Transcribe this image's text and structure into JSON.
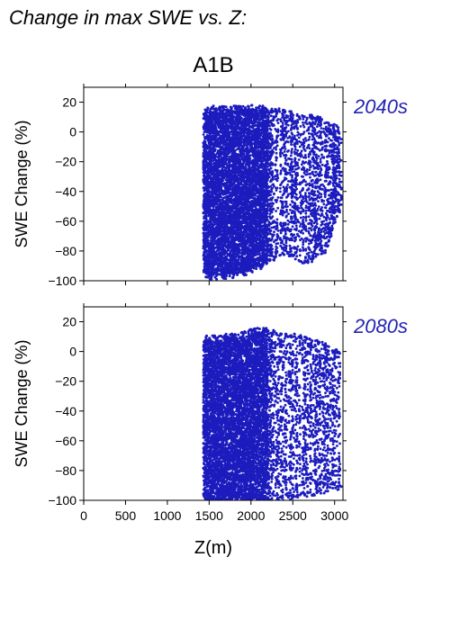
{
  "header": {
    "title": "Change in max SWE vs. Z:"
  },
  "chart_data": {
    "type": "scatter",
    "scenario": "A1B",
    "point_color": "#1c1cbe",
    "label_color": "#2323b4",
    "xlabel": "Z(m)",
    "xlim": [
      0,
      3100
    ],
    "xticks": [
      0,
      500,
      1000,
      1500,
      2000,
      2500,
      3000
    ],
    "xtick_labels": [
      "0",
      "500",
      "1000",
      "1500",
      "2000",
      "2500",
      "3000"
    ],
    "ylim": [
      -100,
      30
    ],
    "yticks": [
      20,
      0,
      -20,
      -40,
      -60,
      -80,
      -100
    ],
    "ytick_labels": [
      "20",
      "0",
      "−20",
      "−40",
      "−60",
      "−80",
      "−100"
    ],
    "grid": false,
    "panels": [
      {
        "period": "2040s",
        "ylabel": "SWE Change (%)",
        "envelope": [
          [
            1430,
            -95,
            12
          ],
          [
            1500,
            -96,
            14
          ],
          [
            1600,
            -96,
            15
          ],
          [
            1700,
            -96,
            15
          ],
          [
            1800,
            -95,
            15
          ],
          [
            1900,
            -94,
            15
          ],
          [
            2000,
            -92,
            15
          ],
          [
            2100,
            -90,
            15
          ],
          [
            2200,
            -86,
            14
          ],
          [
            2300,
            -83,
            13
          ],
          [
            2400,
            -80,
            13
          ],
          [
            2500,
            -82,
            11
          ],
          [
            2600,
            -85,
            10
          ],
          [
            2700,
            -86,
            9
          ],
          [
            2800,
            -80,
            8
          ],
          [
            2900,
            -78,
            5
          ],
          [
            3000,
            -60,
            2
          ],
          [
            3080,
            -50,
            0
          ]
        ]
      },
      {
        "period": "2080s",
        "ylabel": "SWE Change (%)",
        "envelope": [
          [
            1430,
            -100,
            8
          ],
          [
            1500,
            -100,
            8
          ],
          [
            1600,
            -100,
            8
          ],
          [
            1700,
            -100,
            9
          ],
          [
            1800,
            -100,
            9
          ],
          [
            1900,
            -100,
            10
          ],
          [
            2000,
            -100,
            12
          ],
          [
            2100,
            -100,
            13
          ],
          [
            2200,
            -100,
            13
          ],
          [
            2300,
            -100,
            11
          ],
          [
            2400,
            -98,
            10
          ],
          [
            2500,
            -98,
            9
          ],
          [
            2600,
            -94,
            8
          ],
          [
            2700,
            -95,
            6
          ],
          [
            2800,
            -93,
            5
          ],
          [
            2900,
            -92,
            2
          ],
          [
            3000,
            -90,
            0
          ],
          [
            3080,
            -90,
            -5
          ]
        ]
      }
    ]
  }
}
